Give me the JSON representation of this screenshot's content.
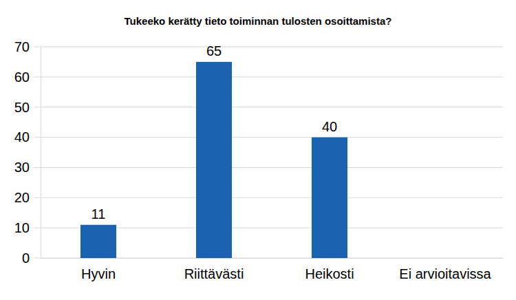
{
  "chart_data": {
    "type": "bar",
    "title": "Tukeeko kerätty tieto toiminnan tulosten osoittamista?",
    "categories": [
      "Hyvin",
      "Riittävästi",
      "Heikosti",
      "Ei arvioitavissa"
    ],
    "values": [
      11,
      65,
      40,
      null
    ],
    "color": "#1a61b0",
    "ylim": [
      0,
      70
    ],
    "yticks": [
      0,
      10,
      20,
      30,
      40,
      50,
      60,
      70
    ],
    "grid": true,
    "data_labels": true
  }
}
